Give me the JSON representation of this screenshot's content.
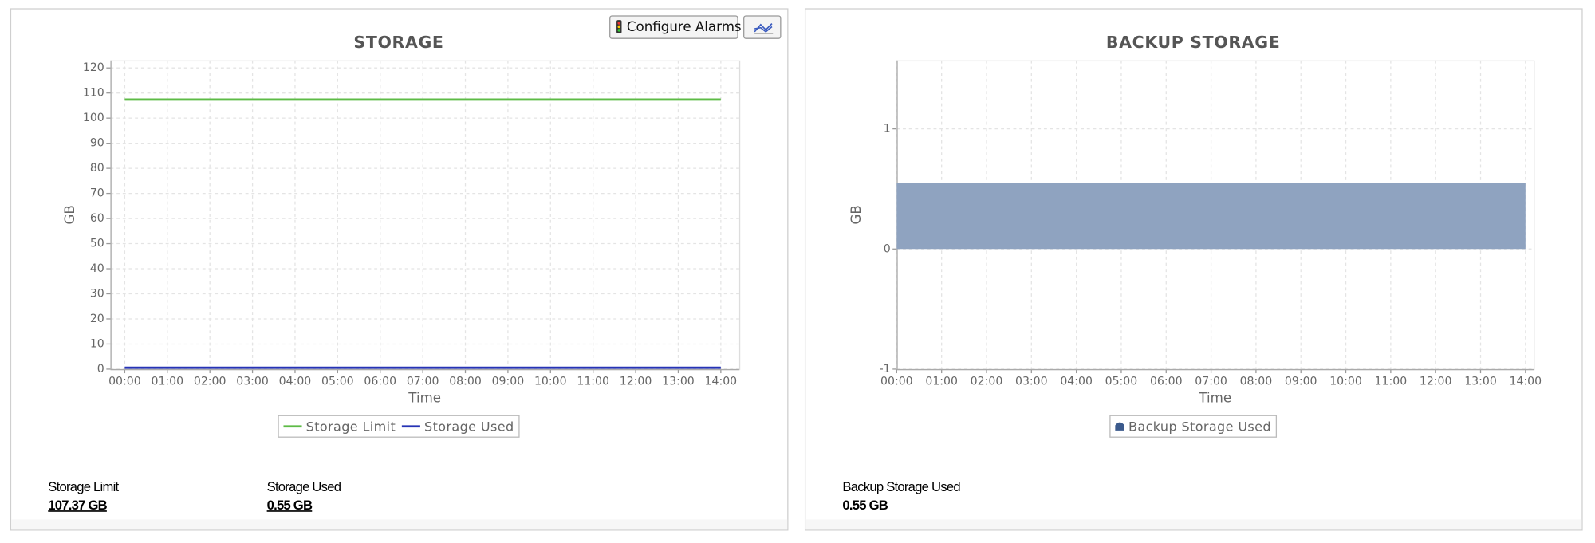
{
  "buttons": {
    "configure_alarms": "Configure Alarms"
  },
  "chart_data": [
    {
      "type": "line",
      "title": "STORAGE",
      "x_label": "Time",
      "y_label": "GB",
      "categories": [
        "00:00",
        "01:00",
        "02:00",
        "03:00",
        "04:00",
        "05:00",
        "06:00",
        "07:00",
        "08:00",
        "09:00",
        "10:00",
        "11:00",
        "12:00",
        "13:00",
        "14:00"
      ],
      "series": [
        {
          "name": "Storage Limit",
          "color": "#5dbb46",
          "values": [
            107.37,
            107.37,
            107.37,
            107.37,
            107.37,
            107.37,
            107.37,
            107.37,
            107.37,
            107.37,
            107.37,
            107.37,
            107.37,
            107.37,
            107.37
          ]
        },
        {
          "name": "Storage Used",
          "color": "#2633b5",
          "values": [
            0.55,
            0.55,
            0.55,
            0.55,
            0.55,
            0.55,
            0.55,
            0.55,
            0.55,
            0.55,
            0.55,
            0.55,
            0.55,
            0.55,
            0.55
          ]
        }
      ],
      "ylim": [
        0,
        123
      ],
      "yticks": [
        0,
        10,
        20,
        30,
        40,
        50,
        60,
        70,
        80,
        90,
        100,
        110,
        120
      ],
      "grid": true,
      "legend": "bottom"
    },
    {
      "type": "area",
      "title": "BACKUP STORAGE",
      "x_label": "Time",
      "y_label": "GB",
      "categories": [
        "00:00",
        "01:00",
        "02:00",
        "03:00",
        "04:00",
        "05:00",
        "06:00",
        "07:00",
        "08:00",
        "09:00",
        "10:00",
        "11:00",
        "12:00",
        "13:00",
        "14:00"
      ],
      "series": [
        {
          "name": "Backup Storage Used",
          "color": "#8fa3c0",
          "values": [
            0.55,
            0.55,
            0.55,
            0.55,
            0.55,
            0.55,
            0.55,
            0.55,
            0.55,
            0.55,
            0.55,
            0.55,
            0.55,
            0.55,
            0.55
          ]
        }
      ],
      "ylim": [
        -1,
        1.57
      ],
      "yticks": [
        -1,
        0,
        1
      ],
      "grid": true,
      "legend": "bottom"
    }
  ],
  "summaries": [
    {
      "items": [
        {
          "label": "Storage Limit",
          "value": "107.37 GB"
        },
        {
          "label": "Storage Used",
          "value": "0.55 GB"
        }
      ]
    },
    {
      "items": [
        {
          "label": "Backup Storage Used",
          "value": "0.55 GB"
        }
      ]
    }
  ]
}
